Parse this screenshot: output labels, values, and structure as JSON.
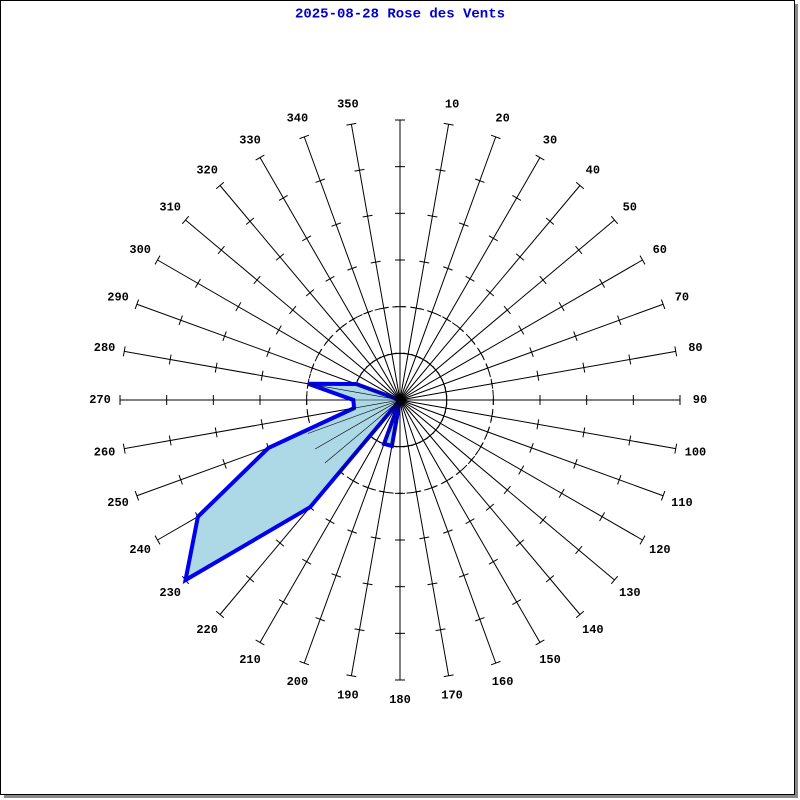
{
  "chart_data": {
    "type": "polar",
    "title": "2025-08-28 Rose des Vents",
    "title_color": "#0000cc",
    "categories": [
      null,
      10,
      20,
      30,
      40,
      50,
      60,
      70,
      80,
      90,
      100,
      110,
      120,
      130,
      140,
      150,
      160,
      170,
      180,
      190,
      200,
      210,
      220,
      230,
      240,
      250,
      260,
      270,
      280,
      290,
      300,
      310,
      320,
      330,
      340,
      350
    ],
    "rlim": [
      0,
      6
    ],
    "rticks": [
      1,
      2,
      3,
      4,
      5,
      6
    ],
    "series": [
      {
        "color": "#0000ee",
        "fill": "#add8e6",
        "values": [
          0,
          0,
          0,
          0,
          0,
          0,
          0,
          0,
          0,
          0,
          0,
          0,
          0,
          0,
          0,
          0,
          0,
          0,
          0,
          1,
          1,
          0,
          3,
          6,
          5,
          3,
          1,
          1,
          2,
          1,
          0,
          0,
          0,
          0,
          0,
          0
        ]
      }
    ]
  }
}
